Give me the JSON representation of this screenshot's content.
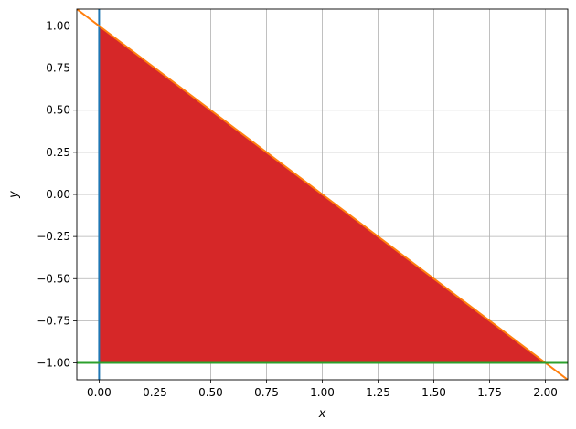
{
  "chart_data": {
    "type": "line",
    "title": "",
    "xlabel": "x",
    "ylabel": "y",
    "xlim": [
      -0.1,
      2.1
    ],
    "ylim": [
      -1.1,
      1.1
    ],
    "grid": true,
    "x_ticks": [
      0.0,
      0.25,
      0.5,
      0.75,
      1.0,
      1.25,
      1.5,
      1.75,
      2.0
    ],
    "x_tick_labels": [
      "0.00",
      "0.25",
      "0.50",
      "0.75",
      "1.00",
      "1.25",
      "1.50",
      "1.75",
      "2.00"
    ],
    "y_ticks": [
      1.0,
      0.75,
      0.5,
      0.25,
      0.0,
      -0.25,
      -0.5,
      -0.75,
      -1.0
    ],
    "y_tick_labels": [
      "1.00",
      "0.75",
      "0.50",
      "0.25",
      "0.00",
      "−0.25",
      "−0.50",
      "−0.75",
      "−1.00"
    ],
    "fill_region": {
      "color": "#d62728",
      "vertices": [
        [
          0,
          1
        ],
        [
          2,
          -1
        ],
        [
          0,
          -1
        ]
      ]
    },
    "series": [
      {
        "type": "vline",
        "x": 0,
        "color": "#1f77b4"
      },
      {
        "type": "line",
        "x": [
          -0.1,
          2.1
        ],
        "y": [
          1.1,
          -1.1
        ],
        "color": "#ff7f0e"
      },
      {
        "type": "hline",
        "y": -1,
        "color": "#2ca02c"
      }
    ]
  }
}
